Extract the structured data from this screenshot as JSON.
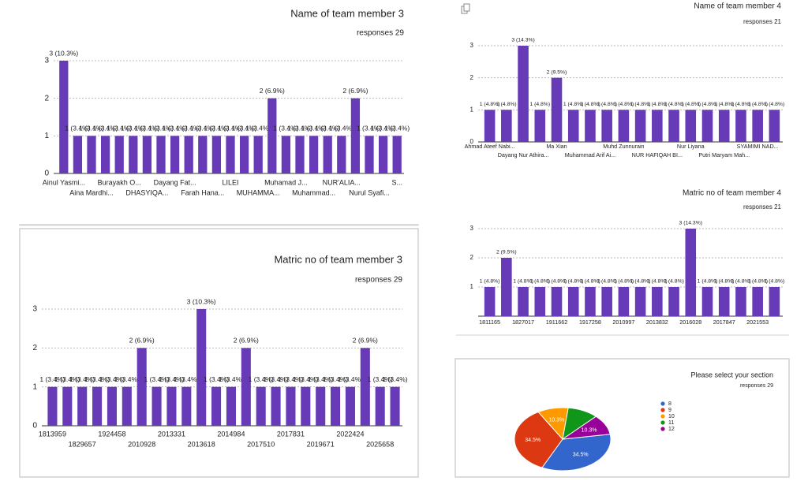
{
  "chart_data": [
    {
      "type": "bar",
      "title": "Name of team member 3",
      "subtitle": "responses 29",
      "categories": [
        "Ainul Yasmi...",
        null,
        "Aina Mardhi...",
        null,
        "Burayakh O...",
        null,
        "DHASYIQA...",
        null,
        "Dayang Fat...",
        null,
        "Farah Hana...",
        null,
        "LILEI",
        null,
        "MUHAMMA...",
        null,
        "Muhamad J...",
        null,
        "Muhammad...",
        null,
        "NUR'ALIA...",
        null,
        "Nurul Syafi...",
        null,
        "S..."
      ],
      "values": [
        3,
        1,
        1,
        1,
        1,
        1,
        1,
        1,
        1,
        1,
        1,
        1,
        1,
        1,
        1,
        2,
        1,
        1,
        1,
        1,
        1,
        2,
        1,
        1,
        1
      ],
      "value_labels": [
        "3 (10.3%)",
        "1 (3.4%)",
        "1 (3.4%)",
        "1 (3.4%)",
        "1 (3.4%)",
        "1 (3.4%)",
        "1 (3.4%)",
        "1 (3.4%)",
        "1 (3.4%)",
        "1 (3.4%)",
        "1 (3.4%)",
        "1 (3.4%)",
        "1 (3.4%)",
        "1 (3.4%)",
        "1 (3.4%)",
        "2 (6.9%)",
        "1 (3.4%)",
        "1 (3.4%)",
        "1 (3.4%)",
        "1 (3.4%)",
        "1 (3.4%)",
        "2 (6.9%)",
        "1 (3.4%)",
        "1 (3.4%)",
        "1 (3.4%)"
      ],
      "color": "#673ab7",
      "ylim": [
        0,
        3
      ],
      "yticks": [
        0,
        1,
        2,
        3
      ],
      "grid": true
    },
    {
      "type": "bar",
      "title": "Matric no of team member 3",
      "subtitle": "responses 29",
      "categories": [
        "1813959",
        null,
        "1829657",
        null,
        "1924458",
        null,
        "2010928",
        null,
        "2013331",
        null,
        "2013618",
        null,
        "2014984",
        null,
        "2017510",
        null,
        "2017831",
        null,
        "2019671",
        null,
        "2022424",
        null,
        "2025658",
        null
      ],
      "values": [
        1,
        1,
        1,
        1,
        1,
        1,
        2,
        1,
        1,
        1,
        3,
        1,
        1,
        2,
        1,
        1,
        1,
        1,
        1,
        1,
        1,
        2,
        1,
        1
      ],
      "value_labels": [
        "1 (3.4%)",
        "1 (3.4%)",
        "1 (3.4%)",
        "1 (3.4%)",
        "1 (3.4%)",
        "1 (3.4%)",
        "2 (6.9%)",
        "1 (3.4%)",
        "1 (3.4%)",
        "1 (3.4%)",
        "3 (10.3%)",
        "1 (3.4%)",
        "1 (3.4%)",
        "2 (6.9%)",
        "1 (3.4%)",
        "1 (3.4%)",
        "1 (3.4%)",
        "1 (3.4%)",
        "1 (3.4%)",
        "1 (3.4%)",
        "1 (3.4%)",
        "2 (6.9%)",
        "1 (3.4%)",
        "1 (3.4%)"
      ],
      "color": "#673ab7",
      "ylim": [
        0,
        3
      ],
      "yticks": [
        0,
        1,
        2,
        3
      ],
      "grid": true
    },
    {
      "type": "bar",
      "title": "Name of team member 4",
      "subtitle": "responses 21",
      "categories": [
        "Ahmad Ateef Nabi...",
        null,
        "Dayang Nur Athira...",
        null,
        "Ma Xian",
        null,
        "Muhammad Arif Ai...",
        null,
        "Muhd Zunnurain",
        null,
        "NUR HAFIQAH BI...",
        null,
        "Nur Liyana",
        null,
        "Putri Maryam Mah...",
        null,
        "SYAMIMI NAD...",
        null
      ],
      "values": [
        1,
        1,
        3,
        1,
        2,
        1,
        1,
        1,
        1,
        1,
        1,
        1,
        1,
        1,
        1,
        1,
        1,
        1
      ],
      "value_labels": [
        "1 (4.8%)",
        "1 (4.8%)",
        "3 (14.3%)",
        "1 (4.8%)",
        "2 (9.5%)",
        "1 (4.8%)",
        "1 (4.8%)",
        "1 (4.8%)",
        "1 (4.8%)",
        "1 (4.8%)",
        "1 (4.8%)",
        "1 (4.8%)",
        "1 (4.8%)",
        "1 (4.8%)",
        "1 (4.8%)",
        "1 (4.8%)",
        "1 (4.8%)",
        "1 (4.8%)"
      ],
      "color": "#673ab7",
      "ylim": [
        0,
        3
      ],
      "yticks": [
        0,
        1,
        2,
        3
      ],
      "grid": true
    },
    {
      "type": "bar",
      "title": "Matric no of team member 4",
      "subtitle": "responses 21",
      "categories": [
        "1811165",
        null,
        "1827017",
        null,
        "1911662",
        null,
        "1917258",
        null,
        "2010997",
        null,
        "2013832",
        null,
        "2016028",
        null,
        "2017847",
        null,
        "2021553",
        null
      ],
      "values": [
        1,
        2,
        1,
        1,
        1,
        1,
        1,
        1,
        1,
        1,
        1,
        1,
        3,
        1,
        1,
        1,
        1,
        1
      ],
      "value_labels": [
        "1 (4.8%)",
        "2 (9.5%)",
        "1 (4.8%)",
        "1 (4.8%)",
        "1 (4.8%)",
        "1 (4.8%)",
        "1 (4.8%)",
        "1 (4.8%)",
        "1 (4.8%)",
        "1 (4.8%)",
        "1 (4.8%)",
        "1 (4.8%)",
        "3 (14.3%)",
        "1 (4.8%)",
        "1 (4.8%)",
        "1 (4.8%)",
        "1 (4.8%)",
        "1 (4.8%)"
      ],
      "color": "#673ab7",
      "ylim": [
        0,
        3
      ],
      "yticks": [
        1,
        2,
        3
      ],
      "grid": true
    },
    {
      "type": "pie",
      "title": "Please select your section",
      "subtitle": "responses 29",
      "categories": [
        "8",
        "9",
        "10",
        "11",
        "12"
      ],
      "values": [
        34.5,
        34.5,
        10.3,
        10.3,
        10.3
      ],
      "value_labels": [
        "34.5%",
        "34.5%",
        "10.3%",
        null,
        "10.3%"
      ],
      "colors": [
        "#3366cc",
        "#dc3912",
        "#ff9900",
        "#109618",
        "#990099"
      ]
    }
  ]
}
